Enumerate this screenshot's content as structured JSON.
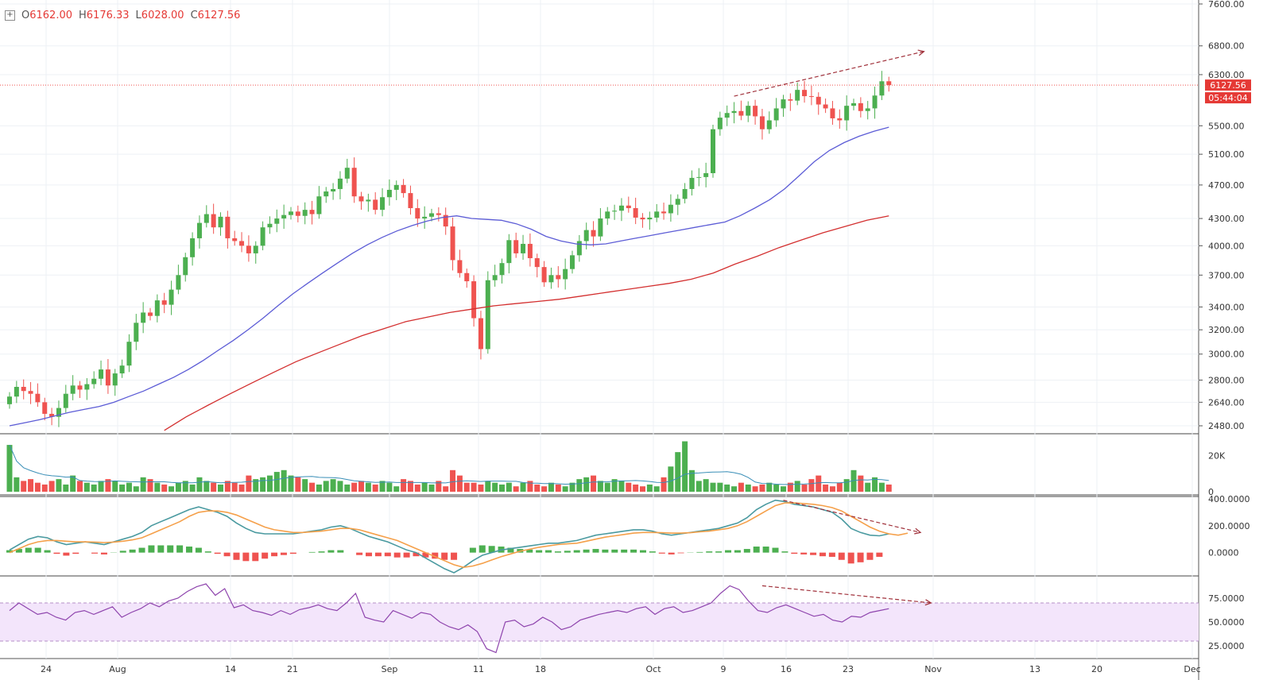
{
  "header": {
    "open_label": "O",
    "open": "6162.00",
    "high_label": "H",
    "high": "6176.33",
    "low_label": "L",
    "low": "6028.00",
    "close_label": "C",
    "close": "6127.56"
  },
  "price_badge": "6127.56",
  "countdown_badge": "05:44:04",
  "price_axis": [
    "7600.00",
    "6800.00",
    "6300.00",
    "5500.00",
    "5100.00",
    "4700.00",
    "4300.00",
    "4000.00",
    "3700.00",
    "3400.00",
    "3200.00",
    "3000.00",
    "2800.00",
    "2640.00",
    "2480.00"
  ],
  "volume_axis": [
    "20K",
    "0"
  ],
  "macd_axis": [
    "400.0000",
    "200.0000",
    "0.0000"
  ],
  "rsi_axis": [
    "75.0000",
    "50.0000",
    "25.0000"
  ],
  "time_axis": [
    "24",
    "Aug",
    "14",
    "21",
    "Sep",
    "11",
    "18",
    "Oct",
    "9",
    "16",
    "23",
    "Nov",
    "13",
    "20",
    "Dec"
  ],
  "colors": {
    "up": "#4caf50",
    "down": "#ef5350",
    "ma_fast": "#5c5cd6",
    "ma_slow": "#d32f2f",
    "macd_line": "#4a9aa0",
    "signal_line": "#f5a04a",
    "rsi_line": "#8e44ad",
    "rsi_band": "#f3e5fb",
    "annotation": "#a0303a",
    "grid": "#eef1f5"
  },
  "chart_data": [
    {
      "type": "candlestick",
      "title": "",
      "last_price": 6127.56,
      "ohlc_last": {
        "open": 6162.0,
        "high": 6176.33,
        "low": 6028.0,
        "close": 6127.56
      },
      "y_scale": "log",
      "ylim": [
        2400,
        7600
      ],
      "x_ticks": [
        "24",
        "Aug",
        "14",
        "21",
        "Sep",
        "11",
        "18",
        "Oct",
        "9",
        "16",
        "23",
        "Nov",
        "13",
        "20",
        "Dec"
      ],
      "close_series": [
        2680,
        2750,
        2720,
        2700,
        2640,
        2560,
        2540,
        2600,
        2700,
        2760,
        2730,
        2770,
        2810,
        2880,
        2760,
        2850,
        2910,
        3100,
        3260,
        3350,
        3320,
        3460,
        3420,
        3560,
        3700,
        3880,
        4080,
        4250,
        4350,
        4200,
        4320,
        4080,
        4050,
        4000,
        3920,
        4000,
        4200,
        4240,
        4300,
        4340,
        4380,
        4330,
        4400,
        4350,
        4560,
        4620,
        4650,
        4780,
        4920,
        4560,
        4500,
        4520,
        4400,
        4550,
        4640,
        4700,
        4600,
        4420,
        4300,
        4320,
        4360,
        4340,
        4210,
        3850,
        3720,
        3640,
        3300,
        3040,
        3650,
        3700,
        3820,
        4060,
        3920,
        4020,
        3870,
        3780,
        3630,
        3700,
        3660,
        3760,
        3900,
        4050,
        4170,
        4100,
        4300,
        4380,
        4390,
        4450,
        4420,
        4310,
        4290,
        4310,
        4380,
        4360,
        4460,
        4530,
        4650,
        4790,
        4800,
        4850,
        5450,
        5620,
        5690,
        5720,
        5650,
        5800,
        5640,
        5450,
        5580,
        5760,
        5900,
        5880,
        6050,
        5950,
        5940,
        5820,
        5760,
        5610,
        5580,
        5800,
        5840,
        5720,
        5760,
        5960,
        6190,
        6127.56
      ],
      "overlays": [
        {
          "name": "",
          "color": "#5c5cd6",
          "start_index": 0,
          "values": [
            2480,
            2500,
            2520,
            2545,
            2570,
            2590,
            2610,
            2640,
            2680,
            2720,
            2770,
            2820,
            2880,
            2950,
            3030,
            3110,
            3200,
            3300,
            3410,
            3520,
            3620,
            3720,
            3820,
            3920,
            4010,
            4090,
            4160,
            4220,
            4270,
            4310,
            4330,
            4300,
            4290,
            4280,
            4240,
            4180,
            4100,
            4050,
            4020,
            4010,
            4020,
            4050,
            4080,
            4110,
            4140,
            4170,
            4200,
            4230,
            4260,
            4330,
            4420,
            4520,
            4650,
            4820,
            5000,
            5150,
            5260,
            5350,
            5420,
            5480
          ]
        },
        {
          "name": "",
          "color": "#d32f2f",
          "start_index": 22,
          "values": [
            2450,
            2540,
            2620,
            2700,
            2780,
            2860,
            2940,
            3010,
            3080,
            3150,
            3210,
            3270,
            3310,
            3350,
            3380,
            3410,
            3430,
            3450,
            3470,
            3500,
            3530,
            3560,
            3590,
            3620,
            3660,
            3720,
            3810,
            3890,
            3980,
            4060,
            4140,
            4210,
            4280,
            4330
          ]
        }
      ],
      "annotations": [
        "resistance trendline (upward dashed arrow)"
      ]
    },
    {
      "type": "bar",
      "title": "",
      "ylim": [
        0,
        30000
      ],
      "y_ticks": [
        "20K",
        "0"
      ],
      "values": [
        26000,
        8000,
        6000,
        7000,
        5000,
        4000,
        6000,
        7000,
        4000,
        9000,
        6000,
        5000,
        4000,
        6000,
        7000,
        6000,
        4000,
        5000,
        3000,
        8000,
        7000,
        5000,
        4000,
        3000,
        5000,
        6000,
        4000,
        8000,
        6000,
        5000,
        4000,
        6000,
        5000,
        4000,
        9000,
        7000,
        8000,
        9000,
        11000,
        12000,
        9000,
        8000,
        7000,
        5000,
        4000,
        6000,
        7000,
        6000,
        4000,
        5000,
        6000,
        5000,
        4000,
        6000,
        5000,
        3000,
        7000,
        6000,
        4000,
        5000,
        4000,
        6000,
        3000,
        12000,
        9000,
        5000,
        5000,
        4000,
        6000,
        5000,
        4000,
        5000,
        3000,
        5000,
        6000,
        4000,
        3000,
        5000,
        4000,
        3000,
        5000,
        7000,
        8000,
        9000,
        6000,
        5000,
        7000,
        6000,
        5000,
        4000,
        3000,
        4000,
        3000,
        8000,
        14000,
        22000,
        28000,
        12000,
        6000,
        7000,
        5000,
        5000,
        4000,
        3000,
        5000,
        4000,
        3000,
        4000,
        5000,
        4000,
        3000,
        5000,
        6000,
        4000,
        7000,
        9000,
        4000,
        3000,
        5000,
        7000,
        12000,
        9000,
        5000,
        8000,
        5000,
        4000
      ]
    },
    {
      "type": "line",
      "title": "",
      "ylim": [
        -150,
        400
      ],
      "y_ticks": [
        "400.0000",
        "200.0000",
        "0.0000"
      ],
      "series": [
        {
          "name": "",
          "values": [
            20,
            60,
            100,
            120,
            110,
            80,
            60,
            70,
            80,
            70,
            60,
            80,
            100,
            120,
            150,
            200,
            230,
            260,
            290,
            320,
            340,
            320,
            300,
            270,
            220,
            180,
            150,
            140,
            140,
            140,
            140,
            150,
            160,
            170,
            190,
            200,
            180,
            150,
            120,
            100,
            80,
            50,
            20,
            0,
            -40,
            -80,
            -120,
            -150,
            -110,
            -60,
            -20,
            0,
            20,
            30,
            40,
            50,
            60,
            70,
            70,
            80,
            90,
            110,
            130,
            140,
            150,
            160,
            170,
            170,
            160,
            140,
            130,
            140,
            150,
            160,
            170,
            180,
            200,
            220,
            260,
            320,
            360,
            390,
            380,
            360,
            350,
            340,
            320,
            300,
            250,
            180,
            150,
            130,
            125,
            140
          ]
        },
        {
          "name": "",
          "values": [
            0,
            30,
            60,
            80,
            90,
            90,
            85,
            80,
            80,
            78,
            75,
            78,
            85,
            95,
            110,
            140,
            170,
            200,
            230,
            270,
            300,
            310,
            310,
            300,
            280,
            250,
            220,
            190,
            170,
            160,
            150,
            150,
            155,
            160,
            170,
            180,
            180,
            170,
            150,
            130,
            110,
            90,
            60,
            30,
            0,
            -30,
            -60,
            -90,
            -110,
            -100,
            -80,
            -55,
            -30,
            -10,
            10,
            25,
            40,
            50,
            60,
            65,
            70,
            85,
            100,
            115,
            125,
            135,
            145,
            150,
            150,
            148,
            145,
            145,
            148,
            155,
            160,
            170,
            180,
            200,
            230,
            270,
            310,
            350,
            370,
            370,
            365,
            360,
            350,
            335,
            310,
            270,
            230,
            190,
            160,
            140,
            130,
            145
          ]
        }
      ],
      "histogram": "macd_histogram_difference"
    },
    {
      "type": "line",
      "title": "",
      "ylim": [
        15,
        95
      ],
      "y_ticks": [
        "75.0000",
        "50.0000",
        "25.0000"
      ],
      "band": [
        30,
        70
      ],
      "series": [
        {
          "name": "",
          "values": [
            62,
            70,
            64,
            58,
            60,
            55,
            52,
            60,
            62,
            58,
            62,
            66,
            55,
            60,
            64,
            70,
            66,
            72,
            75,
            82,
            87,
            90,
            78,
            85,
            65,
            68,
            62,
            60,
            57,
            62,
            58,
            63,
            65,
            68,
            64,
            62,
            70,
            80,
            55,
            52,
            50,
            62,
            58,
            54,
            60,
            58,
            50,
            45,
            42,
            47,
            40,
            22,
            18,
            50,
            52,
            45,
            48,
            55,
            50,
            42,
            45,
            52,
            55,
            58,
            60,
            62,
            60,
            64,
            66,
            58,
            64,
            66,
            60,
            62,
            66,
            70,
            80,
            88,
            84,
            72,
            62,
            60,
            65,
            68,
            64,
            60,
            56,
            58,
            52,
            50,
            56,
            55,
            60,
            62,
            64
          ]
        }
      ],
      "annotations": [
        "divergence dashed arrow"
      ]
    }
  ]
}
